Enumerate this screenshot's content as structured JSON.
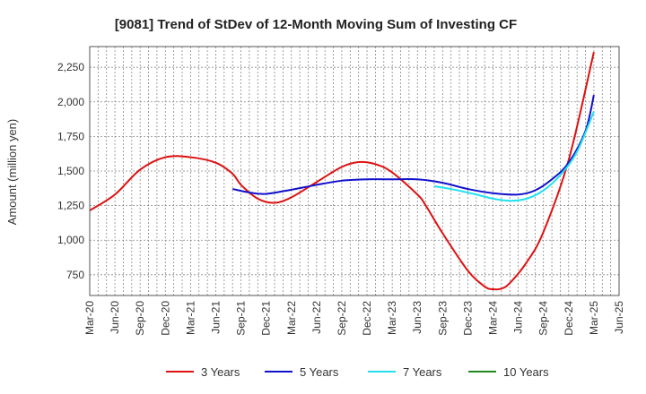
{
  "chart_data": {
    "type": "line",
    "title": "[9081]  Trend of StDev of 12-Month Moving Sum of Investing CF",
    "xlabel": "",
    "ylabel": "Amount (million yen)",
    "ylim": [
      600,
      2400
    ],
    "yticks": [
      750,
      1000,
      1250,
      1500,
      1750,
      2000,
      2250
    ],
    "ytick_labels": [
      "750",
      "1,000",
      "1,250",
      "1,500",
      "1,750",
      "2,000",
      "2,250"
    ],
    "xticks": [
      "Mar-20",
      "Jun-20",
      "Sep-20",
      "Dec-20",
      "Mar-21",
      "Jun-21",
      "Sep-21",
      "Dec-21",
      "Mar-22",
      "Jun-22",
      "Sep-22",
      "Dec-22",
      "Mar-23",
      "Jun-23",
      "Sep-23",
      "Dec-23",
      "Mar-24",
      "Jun-24",
      "Sep-24",
      "Dec-24",
      "Mar-25",
      "Jun-25"
    ],
    "grid": true,
    "legend_position": "bottom",
    "series": [
      {
        "name": "3 Years",
        "color": "#dd1111",
        "points": [
          [
            "Mar-20",
            1215
          ],
          [
            "Jun-20",
            1330
          ],
          [
            "Sep-20",
            1510
          ],
          [
            "Dec-20",
            1600
          ],
          [
            "Mar-21",
            1600
          ],
          [
            "Jun-21",
            1560
          ],
          [
            "Aug-21",
            1480
          ],
          [
            "Sep-21",
            1400
          ],
          [
            "Nov-21",
            1300
          ],
          [
            "Jan-22",
            1270
          ],
          [
            "Mar-22",
            1310
          ],
          [
            "Jun-22",
            1420
          ],
          [
            "Sep-22",
            1530
          ],
          [
            "Nov-22",
            1565
          ],
          [
            "Jan-23",
            1550
          ],
          [
            "Mar-23",
            1490
          ],
          [
            "Jun-23",
            1330
          ],
          [
            "Jul-23",
            1250
          ],
          [
            "Sep-23",
            1050
          ],
          [
            "Dec-23",
            780
          ],
          [
            "Feb-24",
            665
          ],
          [
            "Mar-24",
            645
          ],
          [
            "Apr-24",
            650
          ],
          [
            "May-24",
            690
          ],
          [
            "Jul-24",
            840
          ],
          [
            "Sep-24",
            1060
          ],
          [
            "Dec-24",
            1580
          ],
          [
            "Mar-25",
            2360
          ]
        ]
      },
      {
        "name": "5 Years",
        "color": "#1111cc",
        "points": [
          [
            "Aug-21",
            1370
          ],
          [
            "Oct-21",
            1345
          ],
          [
            "Dec-21",
            1335
          ],
          [
            "Mar-22",
            1365
          ],
          [
            "Jun-22",
            1400
          ],
          [
            "Sep-22",
            1430
          ],
          [
            "Dec-22",
            1440
          ],
          [
            "Mar-23",
            1440
          ],
          [
            "Jun-23",
            1440
          ],
          [
            "Sep-23",
            1415
          ],
          [
            "Dec-23",
            1370
          ],
          [
            "Mar-24",
            1340
          ],
          [
            "Jun-24",
            1330
          ],
          [
            "Aug-24",
            1360
          ],
          [
            "Oct-24",
            1440
          ],
          [
            "Dec-24",
            1560
          ],
          [
            "Feb-25",
            1790
          ],
          [
            "Mar-25",
            2050
          ]
        ]
      },
      {
        "name": "7 Years",
        "color": "#22e0f0",
        "points": [
          [
            "Aug-23",
            1390
          ],
          [
            "Oct-23",
            1370
          ],
          [
            "Jan-24",
            1330
          ],
          [
            "Mar-24",
            1300
          ],
          [
            "May-24",
            1285
          ],
          [
            "Jul-24",
            1300
          ],
          [
            "Sep-24",
            1360
          ],
          [
            "Nov-24",
            1470
          ],
          [
            "Jan-25",
            1640
          ],
          [
            "Mar-25",
            1930
          ]
        ]
      },
      {
        "name": "10 Years",
        "color": "#228822",
        "points": []
      }
    ]
  }
}
